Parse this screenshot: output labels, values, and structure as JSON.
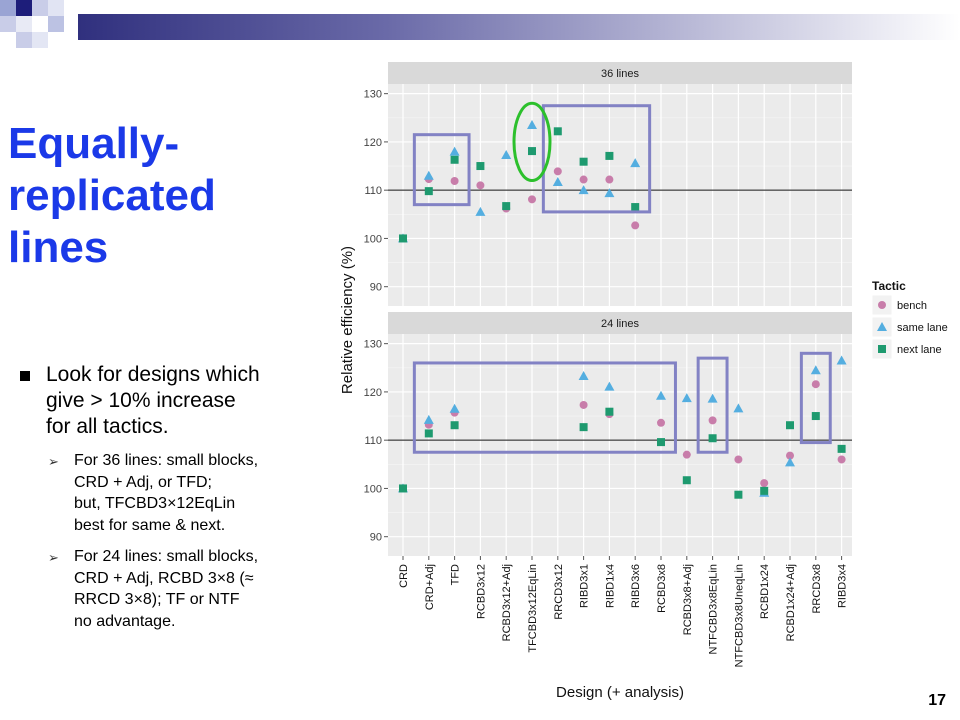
{
  "slide": {
    "title_lines": [
      "Equally-",
      "replicated",
      "lines"
    ],
    "bullet": {
      "lines": [
        "Look for designs which",
        "give > 10% increase",
        "for all tactics."
      ],
      "sub_bullets": [
        {
          "lines": [
            "For 36 lines: small blocks,",
            "CRD + Adj, or TFD;",
            "but, TFCBD3×12EqLin",
            "best for same & next."
          ]
        },
        {
          "lines": [
            "For 24 lines: small blocks,",
            "CRD + Adj, RCBD 3×8 (≈",
            "RRCD 3×8); TF or NTF",
            "no advantage."
          ]
        }
      ]
    },
    "page_number": "17"
  },
  "chart_data": {
    "type": "scatter",
    "xlabel": "Design (+ analysis)",
    "ylabel": "Relative efficiency (%)",
    "ylim": [
      86,
      132
    ],
    "yticks": [
      90,
      100,
      110,
      120,
      130
    ],
    "reference_line": 110,
    "grid": true,
    "legend": {
      "title": "Tactic",
      "position": "right"
    },
    "colors": {
      "bench": "#c87daa",
      "same lane": "#54aee0",
      "next lane": "#1e9a6f"
    },
    "categories": [
      "CRD",
      "CRD+Adj",
      "TFD",
      "RCBD3x12",
      "RCBD3x12+Adj",
      "TFCBD3x12EqLin",
      "RRCD3x12",
      "RIBD3x1",
      "RIBD1x4",
      "RIBD3x6",
      "RCBD3x8",
      "RCBD3x8+Adj",
      "NTFCBD3x8EqLin",
      "NTFCBD3x8UneqLin",
      "RCBD1x24",
      "RCBD1x24+Adj",
      "RRCD3x8",
      "RIBD3x4"
    ],
    "panels": [
      {
        "title": "36 lines",
        "series": [
          {
            "name": "bench",
            "values": [
              100,
              112.3,
              111.9,
              111,
              106.2,
              108.1,
              113.9,
              112.2,
              112.2,
              102.7,
              null,
              null,
              null,
              null,
              null,
              null,
              null,
              null
            ]
          },
          {
            "name": "same lane",
            "values": [
              100,
              113,
              118,
              105.5,
              117.3,
              123.5,
              111.7,
              110,
              109.4,
              115.6,
              null,
              null,
              null,
              null,
              null,
              null,
              null,
              null
            ]
          },
          {
            "name": "next lane",
            "values": [
              100,
              109.8,
              116.3,
              115,
              106.7,
              118.1,
              122.2,
              115.9,
              117.1,
              106.5,
              null,
              null,
              null,
              null,
              null,
              null,
              null,
              null
            ]
          }
        ],
        "highlight_boxes": [
          {
            "from": "CRD+Adj",
            "to": "TFD",
            "y": [
              107,
              121.5
            ]
          },
          {
            "from": "RRCD3x12",
            "to": "RIBD3x6",
            "y": [
              105.5,
              127.5
            ]
          }
        ],
        "highlight_circles": [
          {
            "category": "TFCBD3x12EqLin",
            "y": [
              112,
              128
            ]
          }
        ]
      },
      {
        "title": "24 lines",
        "series": [
          {
            "name": "bench",
            "values": [
              100,
              113.2,
              115.7,
              null,
              null,
              null,
              null,
              117.3,
              115.4,
              null,
              113.6,
              107,
              114.1,
              106,
              101.1,
              106.8,
              121.6,
              106
            ]
          },
          {
            "name": "same lane",
            "values": [
              100,
              114.2,
              116.5,
              null,
              null,
              null,
              null,
              123.3,
              121.1,
              null,
              119.2,
              118.7,
              118.6,
              116.6,
              99.1,
              105.4,
              124.5,
              126.5
            ]
          },
          {
            "name": "next lane",
            "values": [
              100,
              111.4,
              113.1,
              null,
              null,
              null,
              null,
              112.7,
              115.9,
              null,
              109.6,
              101.7,
              110.4,
              98.7,
              99.5,
              113.1,
              115,
              108.2
            ]
          }
        ],
        "highlight_boxes": [
          {
            "from": "CRD+Adj",
            "to": "RCBD3x8",
            "y": [
              107.5,
              126
            ]
          },
          {
            "from": "NTFCBD3x8EqLin",
            "to": "NTFCBD3x8EqLin",
            "y": [
              107.5,
              127
            ]
          },
          {
            "from": "RRCD3x8",
            "to": "RRCD3x8",
            "y": [
              109.5,
              128
            ]
          }
        ]
      }
    ]
  }
}
